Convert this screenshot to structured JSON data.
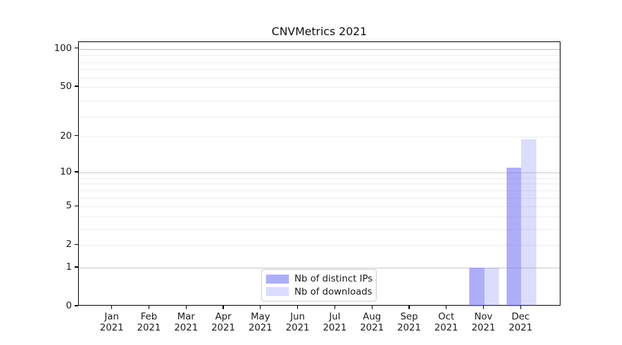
{
  "chart_data": {
    "type": "bar",
    "title": "CNVMetrics 2021",
    "year": "2021",
    "months": [
      "Jan",
      "Feb",
      "Mar",
      "Apr",
      "May",
      "Jun",
      "Jul",
      "Aug",
      "Sep",
      "Oct",
      "Nov",
      "Dec"
    ],
    "series": [
      {
        "name": "Nb of distinct IPs",
        "color": "rgba(120,120,243,0.60)",
        "values": [
          0,
          0,
          0,
          0,
          0,
          0,
          0,
          0,
          0,
          0,
          1,
          11
        ]
      },
      {
        "name": "Nb of downloads",
        "color": "rgba(120,120,243,0.26)",
        "values": [
          0,
          0,
          0,
          0,
          0,
          0,
          0,
          0,
          0,
          0,
          1,
          19
        ]
      }
    ],
    "yscale": "log1p",
    "ylim": [
      0,
      113
    ],
    "yticks": [
      0,
      1,
      2,
      5,
      10,
      20,
      50,
      100
    ],
    "grid": {
      "major_values": [
        1,
        10,
        100
      ],
      "minor_values": [
        2,
        3,
        4,
        5,
        6,
        7,
        8,
        9,
        20,
        29,
        39,
        50,
        59,
        69,
        79,
        89,
        99
      ],
      "major_color": "#c8c8c8",
      "minor_color": "#ededed"
    },
    "legend_position": "lower center inside",
    "text_color": "#1a1a1a",
    "spine_color": "#000000"
  }
}
